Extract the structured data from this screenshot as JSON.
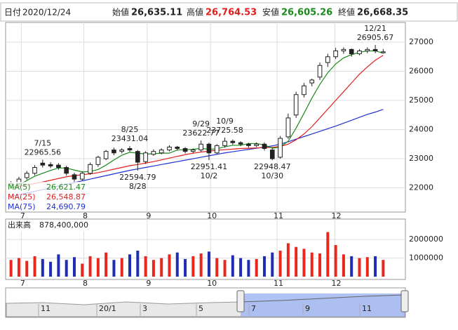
{
  "chart_data": {
    "type": "candlestick",
    "header": {
      "date_label": "日付",
      "date": "2020/12/24",
      "open_label": "始値",
      "open": "26,635.11",
      "high_label": "高値",
      "high": "26,764.53",
      "low_label": "安値",
      "low": "26,605.26",
      "close_label": "終値",
      "close": "26,668.35"
    },
    "up_color": "#e8281e",
    "down_color": "#1e2db4",
    "xlim": [
      -0.5,
      47.5
    ],
    "xticks": [
      {
        "value": 1.3,
        "label": "7"
      },
      {
        "value": 9.2,
        "label": "8"
      },
      {
        "value": 17.2,
        "label": "9"
      },
      {
        "value": 25.2,
        "label": "10"
      },
      {
        "value": 33.6,
        "label": "11"
      },
      {
        "value": 40.9,
        "label": "12"
      }
    ],
    "ylim": [
      21170,
      27675
    ],
    "yticks": [
      22000,
      23000,
      24000,
      25000,
      26000,
      27000
    ],
    "grid": true,
    "ohlc": {
      "open": [
        22100,
        22150,
        22350,
        22500,
        22850,
        22800,
        22780,
        22700,
        22450,
        22300,
        22500,
        22800,
        23000,
        23300,
        23250,
        23350,
        23250,
        22900,
        23150,
        23200,
        23300,
        23400,
        23350,
        23250,
        23300,
        23500,
        23200,
        23450,
        23600,
        23550,
        23500,
        23450,
        23500,
        23300,
        23050,
        23750,
        24500,
        25200,
        25600,
        25800,
        26300,
        26500,
        26700,
        26750,
        26600,
        26700,
        26750,
        26635.11
      ],
      "high": [
        22230,
        22380,
        22580,
        22780,
        22965.56,
        22880,
        22850,
        22760,
        22520,
        22560,
        22870,
        23100,
        23300,
        23380,
        23360,
        23431.04,
        23300,
        23260,
        23320,
        23360,
        23460,
        23440,
        23400,
        23350,
        23622.77,
        23550,
        23500,
        23725.58,
        23660,
        23600,
        23550,
        23560,
        23560,
        23350,
        23780,
        24550,
        25300,
        25600,
        25750,
        26300,
        26600,
        26800,
        26820,
        26780,
        26760,
        26820,
        26905.67,
        26764.53
      ],
      "low": [
        22020,
        22080,
        22280,
        22430,
        22700,
        22680,
        22620,
        22420,
        22200,
        22230,
        22450,
        22720,
        22950,
        23120,
        23180,
        23240,
        22594.79,
        22820,
        23100,
        23150,
        23250,
        23280,
        23180,
        23180,
        23240,
        22951.41,
        23150,
        23380,
        23480,
        23430,
        23380,
        23400,
        23280,
        22948.47,
        23000,
        23680,
        24400,
        25100,
        25480,
        25700,
        26150,
        26420,
        26600,
        26500,
        26550,
        26620,
        26620,
        26605.26
      ],
      "close": [
        22150,
        22300,
        22500,
        22700,
        22780,
        22750,
        22700,
        22500,
        22300,
        22500,
        22800,
        23050,
        23250,
        23200,
        23300,
        23300,
        22880,
        23200,
        23250,
        23300,
        23400,
        23350,
        23250,
        23300,
        23500,
        23200,
        23450,
        23600,
        23550,
        23500,
        23450,
        23500,
        23350,
        23000,
        23700,
        24400,
        25200,
        25500,
        25700,
        26200,
        26500,
        26700,
        26750,
        26600,
        26700,
        26750,
        26700,
        26668.35
      ]
    },
    "ma": [
      {
        "name": "MA(5)",
        "color": "#1a8a1a",
        "latest_label": "26,621.47",
        "values": [
          22000,
          22100,
          22250,
          22400,
          22500,
          22600,
          22680,
          22680,
          22610,
          22550,
          22560,
          22630,
          22780,
          22960,
          23120,
          23220,
          23190,
          23160,
          23170,
          23190,
          23190,
          23300,
          23310,
          23320,
          23360,
          23320,
          23340,
          23410,
          23460,
          23460,
          23520,
          23520,
          23470,
          23360,
          23400,
          23600,
          24050,
          24560,
          25080,
          25550,
          25950,
          26250,
          26460,
          26570,
          26650,
          26700,
          26700,
          26621.47
        ]
      },
      {
        "name": "MA(25)",
        "color": "#e02020",
        "latest_label": "26,548.87",
        "values": [
          22000,
          22050,
          22100,
          22150,
          22200,
          22260,
          22320,
          22380,
          22420,
          22450,
          22480,
          22520,
          22580,
          22640,
          22700,
          22760,
          22800,
          22850,
          22900,
          22960,
          23020,
          23080,
          23140,
          23190,
          23230,
          23260,
          23290,
          23310,
          23330,
          23350,
          23360,
          23370,
          23380,
          23390,
          23420,
          23500,
          23650,
          23850,
          24100,
          24400,
          24700,
          25000,
          25300,
          25600,
          25900,
          26150,
          26380,
          26548.87
        ]
      },
      {
        "name": "MA(75)",
        "color": "#2030d0",
        "latest_label": "24,690.79",
        "values": [
          21700,
          21760,
          21820,
          21880,
          21940,
          22000,
          22060,
          22120,
          22180,
          22240,
          22300,
          22360,
          22420,
          22480,
          22540,
          22600,
          22650,
          22700,
          22750,
          22800,
          22850,
          22900,
          22950,
          23000,
          23050,
          23100,
          23150,
          23200,
          23240,
          23280,
          23320,
          23360,
          23400,
          23440,
          23500,
          23580,
          23670,
          23760,
          23850,
          23940,
          24030,
          24120,
          24220,
          24320,
          24420,
          24520,
          24600,
          24690.79
        ]
      }
    ],
    "annotations": [
      {
        "date": "7/15",
        "value": 22965.56,
        "x": 4,
        "position": "above"
      },
      {
        "date": "8/25",
        "value": 23431.04,
        "x": 15,
        "position": "above"
      },
      {
        "date": "8/28",
        "value": 22594.79,
        "x": 16,
        "position": "below"
      },
      {
        "date": "9/29",
        "value": 23622.77,
        "x": 24,
        "position": "above"
      },
      {
        "date": "10/2",
        "value": 22951.41,
        "x": 25,
        "position": "below"
      },
      {
        "date": "10/9",
        "value": 23725.58,
        "x": 27,
        "position": "above"
      },
      {
        "date": "10/30",
        "value": 22948.47,
        "x": 33,
        "position": "below"
      },
      {
        "date": "12/21",
        "value": 26905.67,
        "x": 46,
        "position": "above"
      }
    ],
    "volume": {
      "label": "出来高",
      "total_label": "878,400,000",
      "ylim": [
        -150000,
        3100000
      ],
      "yticks": [
        1000000,
        2000000
      ],
      "values": [
        900000,
        1000000,
        850000,
        1100000,
        950000,
        800000,
        1200000,
        900000,
        1050000,
        700000,
        1100000,
        1000000,
        1300000,
        900000,
        1000000,
        1200000,
        1400000,
        1100000,
        900000,
        1000000,
        1200000,
        1300000,
        950000,
        1100000,
        1250000,
        1350000,
        1000000,
        900000,
        1150000,
        1000000,
        900000,
        950000,
        1100000,
        1300000,
        1400000,
        1800000,
        1600000,
        1500000,
        1300000,
        1250000,
        2400000,
        1700000,
        1200000,
        1100000,
        1000000,
        1050000,
        1100000,
        900000
      ]
    },
    "navigator": {
      "labels": [
        "11",
        "20/1",
        "3",
        "5",
        "7",
        "9",
        "11"
      ]
    }
  }
}
